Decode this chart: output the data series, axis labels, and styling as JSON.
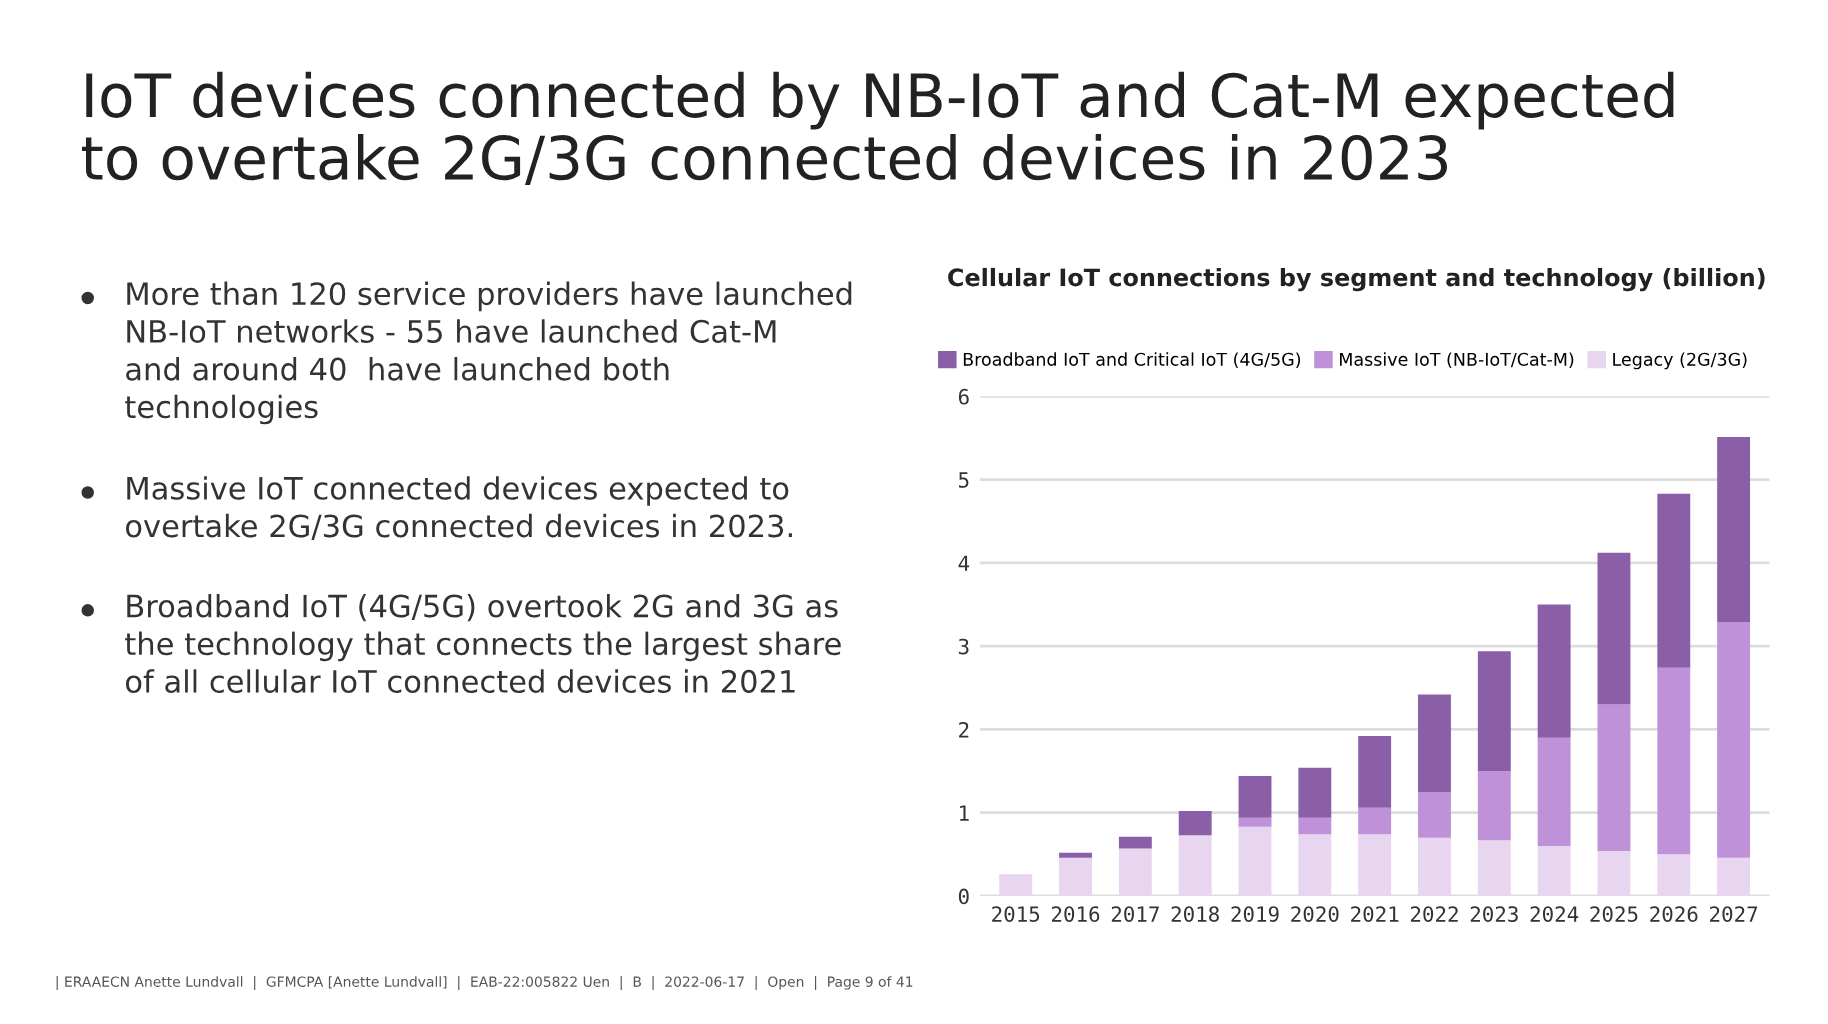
{
  "chart_data": {
    "type": "bar",
    "stacked": true,
    "title": "IoT devices connected by NB-IoT and Cat-M expected\nto overtake 2G/3G connected devices in 2023",
    "subtitle": "Cellular IoT connections by segment and technology (billion)",
    "categories": [
      "2015",
      "2016",
      "2017",
      "2018",
      "2019",
      "2020",
      "2021",
      "2022",
      "2023",
      "2024",
      "2025",
      "2026",
      "2027"
    ],
    "series": [
      {
        "name": "Legacy (2G/3G)",
        "color": "#e8d5f0",
        "values": [
          0.26,
          0.46,
          0.57,
          0.73,
          0.83,
          0.74,
          0.74,
          0.7,
          0.67,
          0.6,
          0.54,
          0.5,
          0.46
        ]
      },
      {
        "name": "Massive IoT (NB-IoT/Cat-M)",
        "color": "#bf91d9",
        "values": [
          null,
          null,
          null,
          null,
          0.11,
          0.2,
          0.32,
          0.55,
          0.83,
          1.3,
          1.76,
          2.24,
          2.83
        ]
      },
      {
        "name": "Broadband IoT and Critical IoT (4G/5G)",
        "color": "#8a5fa8",
        "values": [
          null,
          0.06,
          0.14,
          0.29,
          0.5,
          0.6,
          0.86,
          1.17,
          1.44,
          1.6,
          1.82,
          2.09,
          2.22
        ]
      }
    ],
    "ylim": [
      0,
      6
    ],
    "yticks": [
      0,
      1,
      2,
      3,
      4,
      5,
      6
    ],
    "grid": "y",
    "legend": "top",
    "annotations": [
      "More than 120 service providers have launched\nNB-IoT networks - 55 have launched Cat-M\nand around 40  have launched both\ntechnologies",
      "Massive IoT connected devices expected to\novertake 2G/3G connected devices in 2023.",
      "Broadband IoT (4G/5G) overtook 2G and 3G as\nthe technology that connects the largest share\nof all cellular IoT connected devices in 2021",
      "| ERAAECN Anette Lundvall  |  GFMCPA [Anette Lundvall]  |  EAB-22:005822 Uen  |  B  |  2022-06-17  |  Open  |  Page 9 of 41"
    ]
  }
}
